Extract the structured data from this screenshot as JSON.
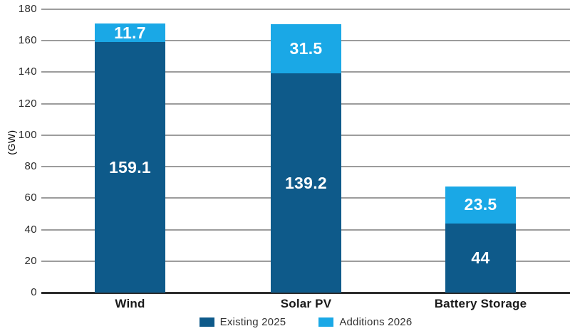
{
  "chart_data": {
    "type": "bar",
    "stacked": true,
    "title": "",
    "categories": [
      "Wind",
      "Solar PV",
      "Battery Storage"
    ],
    "series": [
      {
        "name": "Existing 2025",
        "color": "#0e5a8a",
        "values": [
          159.1,
          139.2,
          44
        ]
      },
      {
        "name": "Additions 2026",
        "color": "#1aa8e6",
        "values": [
          11.7,
          31.5,
          23.5
        ]
      }
    ],
    "value_labels": {
      "existing": [
        "159.1",
        "139.2",
        "44"
      ],
      "additions": [
        "11.7",
        "31.5",
        "23.5"
      ]
    },
    "xlabel": "",
    "ylabel": "(GW)",
    "ylim": [
      0,
      180
    ],
    "ytick_step": 20,
    "yticks": [
      0,
      20,
      40,
      60,
      80,
      100,
      120,
      140,
      160,
      180
    ],
    "grid": true,
    "legend_position": "bottom",
    "legend": [
      "Existing 2025",
      "Additions 2026"
    ]
  },
  "colors": {
    "grid": "#9c9c9c",
    "axis": "#2d2d2d",
    "tick_text": "#2b2b2b",
    "category_text": "#1a1a1a",
    "legend_text": "#333333",
    "value_text": "#ffffff"
  }
}
